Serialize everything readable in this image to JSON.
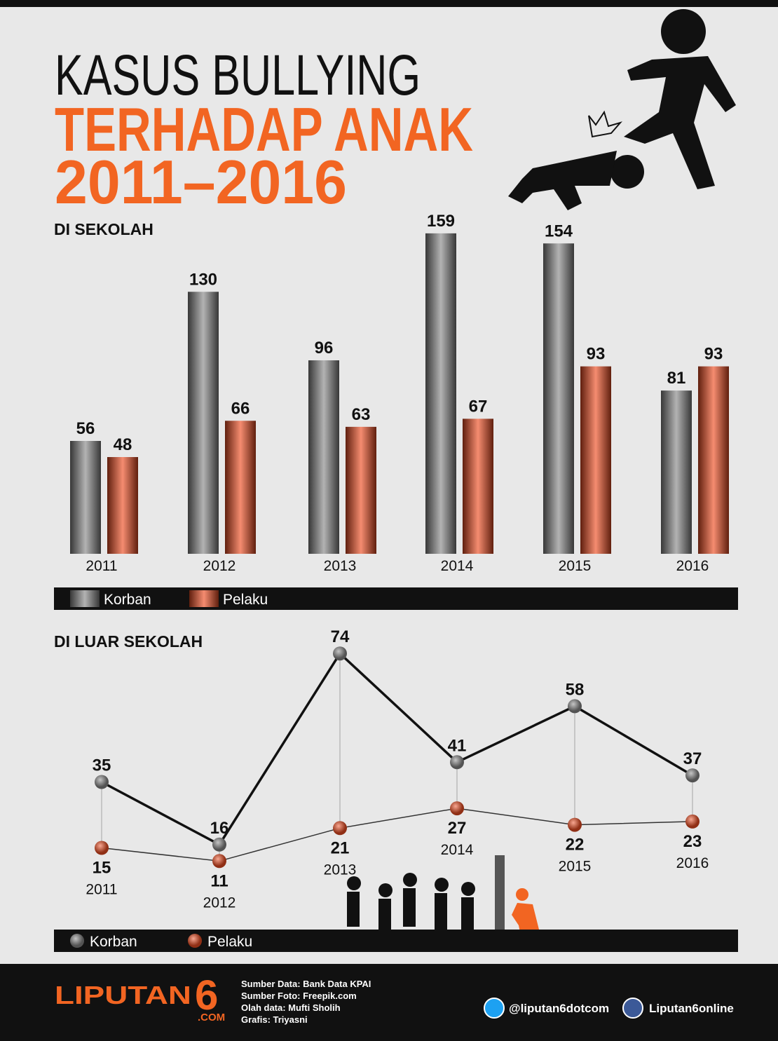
{
  "header": {
    "title_line1": "KASUS BULLYING",
    "title_line2": "TERHADAP ANAK",
    "title_line3": "2011–2016"
  },
  "chart_data": [
    {
      "type": "bar",
      "title": "DI SEKOLAH",
      "categories": [
        "2011",
        "2012",
        "2013",
        "2014",
        "2015",
        "2016"
      ],
      "series": [
        {
          "name": "Korban",
          "color": "#8a8a8a",
          "values": [
            56,
            130,
            96,
            159,
            154,
            81
          ]
        },
        {
          "name": "Pelaku",
          "color": "#f04e23",
          "values": [
            48,
            66,
            63,
            67,
            93,
            93
          ]
        }
      ],
      "ylim": [
        0,
        160
      ]
    },
    {
      "type": "line",
      "title": "DI LUAR SEKOLAH",
      "categories": [
        "2011",
        "2012",
        "2013",
        "2014",
        "2015",
        "2016"
      ],
      "series": [
        {
          "name": "Korban",
          "color": "#8a8a8a",
          "values": [
            35,
            16,
            74,
            41,
            58,
            37
          ]
        },
        {
          "name": "Pelaku",
          "color": "#f04e23",
          "values": [
            15,
            11,
            21,
            27,
            22,
            23
          ]
        }
      ],
      "ylim": [
        0,
        80
      ]
    }
  ],
  "footer": {
    "logo": "LIPUTAN",
    "logo_number": "6",
    "logo_suffix": ".COM",
    "sources": [
      "Sumber Data: Bank Data KPAI",
      "Sumber Foto: Freepik.com",
      "Olah data: Mufti Sholih",
      "Grafis: Triyasni"
    ],
    "twitter": "@liputan6dotcom",
    "facebook": "Liputan6online"
  }
}
